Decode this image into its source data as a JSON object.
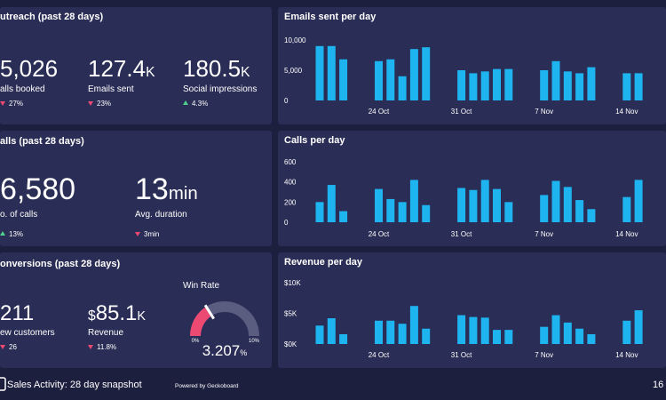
{
  "outreach": {
    "title": "utreach (past 28 days)",
    "stats": [
      {
        "value": "5,026",
        "label": "alls booked",
        "change": {
          "direction": "down",
          "text": "27%"
        }
      },
      {
        "value": "127.4",
        "unit": "K",
        "label": "Emails sent",
        "change": {
          "direction": "down",
          "text": "23%"
        }
      },
      {
        "value": "180.5",
        "unit": "K",
        "label": "Social impressions",
        "change": {
          "direction": "up",
          "text": "4.3%"
        }
      }
    ]
  },
  "calls": {
    "title": "alls (past 28 days)",
    "stats": [
      {
        "value": "6,580",
        "label": "o. of calls",
        "change": {
          "direction": "up",
          "text": "13%"
        }
      },
      {
        "value": "13",
        "unit": "min",
        "label": "Avg. duration",
        "change": {
          "direction": "down",
          "text": "3min"
        }
      }
    ]
  },
  "conversions": {
    "title": "onversions (past 28 days)",
    "stats": [
      {
        "value": "211",
        "label": "ew customers",
        "change": {
          "direction": "down",
          "text": "26"
        }
      },
      {
        "prefix": "$",
        "value": "85.1",
        "unit": "K",
        "label": "Revenue",
        "change": {
          "direction": "down",
          "text": "11.8%"
        }
      }
    ],
    "win_rate": {
      "title": "Win Rate",
      "value": 3.207,
      "unit": "%",
      "ticks": [
        {
          "value": 0,
          "label": "0%"
        },
        {
          "value": 10,
          "label": "10%"
        }
      ]
    }
  },
  "chart_data": [
    {
      "type": "bar",
      "title": "Emails sent per day",
      "color": "#1eb4ef",
      "categories": [
        null,
        null,
        null,
        null,
        null,
        "24 Oct",
        null,
        null,
        null,
        null,
        null,
        null,
        "31 Oct",
        null,
        null,
        null,
        null,
        null,
        null,
        "7 Nov",
        null,
        null,
        null,
        null,
        null,
        null,
        "14 Nov",
        null
      ],
      "values": [
        9000,
        9000,
        6800,
        null,
        null,
        6500,
        6800,
        4000,
        8500,
        8800,
        null,
        null,
        5000,
        4500,
        4800,
        5200,
        5200,
        null,
        null,
        5000,
        6500,
        4800,
        4500,
        5500,
        null,
        null,
        4500,
        4500
      ],
      "ylim": [
        0,
        10000
      ],
      "yticks": [
        0,
        {
          "value": 5000,
          "label": "5,000"
        },
        {
          "value": 10000,
          "label": "10,000"
        }
      ]
    },
    {
      "type": "bar",
      "title": "Calls per day",
      "color": "#1eb4ef",
      "categories": [
        null,
        null,
        null,
        null,
        null,
        "24 Oct",
        null,
        null,
        null,
        null,
        null,
        null,
        "31 Oct",
        null,
        null,
        null,
        null,
        null,
        null,
        "7 Nov",
        null,
        null,
        null,
        null,
        null,
        null,
        "14 Nov",
        null
      ],
      "values": [
        200,
        370,
        110,
        null,
        null,
        330,
        230,
        200,
        420,
        170,
        null,
        null,
        340,
        320,
        420,
        330,
        200,
        null,
        null,
        270,
        410,
        350,
        220,
        130,
        null,
        null,
        250,
        420
      ],
      "ylim": [
        0,
        600
      ],
      "yticks": [
        0,
        200,
        400,
        600
      ]
    },
    {
      "type": "bar",
      "title": "Revenue per day",
      "color": "#1eb4ef",
      "categories": [
        null,
        null,
        null,
        null,
        null,
        "24 Oct",
        null,
        null,
        null,
        null,
        null,
        null,
        "31 Oct",
        null,
        null,
        null,
        null,
        null,
        null,
        "7 Nov",
        null,
        null,
        null,
        null,
        null,
        null,
        "14 Nov",
        null
      ],
      "values": [
        3000,
        4200,
        1600,
        null,
        null,
        3800,
        3800,
        3300,
        6200,
        2500,
        null,
        null,
        4700,
        4400,
        4300,
        2300,
        2300,
        null,
        null,
        2800,
        4700,
        3500,
        2500,
        1600,
        null,
        null,
        3800,
        5500
      ],
      "ylim": [
        0,
        10000
      ],
      "yticks": [
        {
          "value": 0,
          "label": "$0K"
        },
        {
          "value": 5000,
          "label": "$5K"
        },
        {
          "value": 10000,
          "label": "$10K"
        }
      ]
    }
  ],
  "footer": {
    "title": "Sales Activity: 28 day snapshot",
    "powered_by": "Powered by Geckoboard",
    "time": "16"
  }
}
